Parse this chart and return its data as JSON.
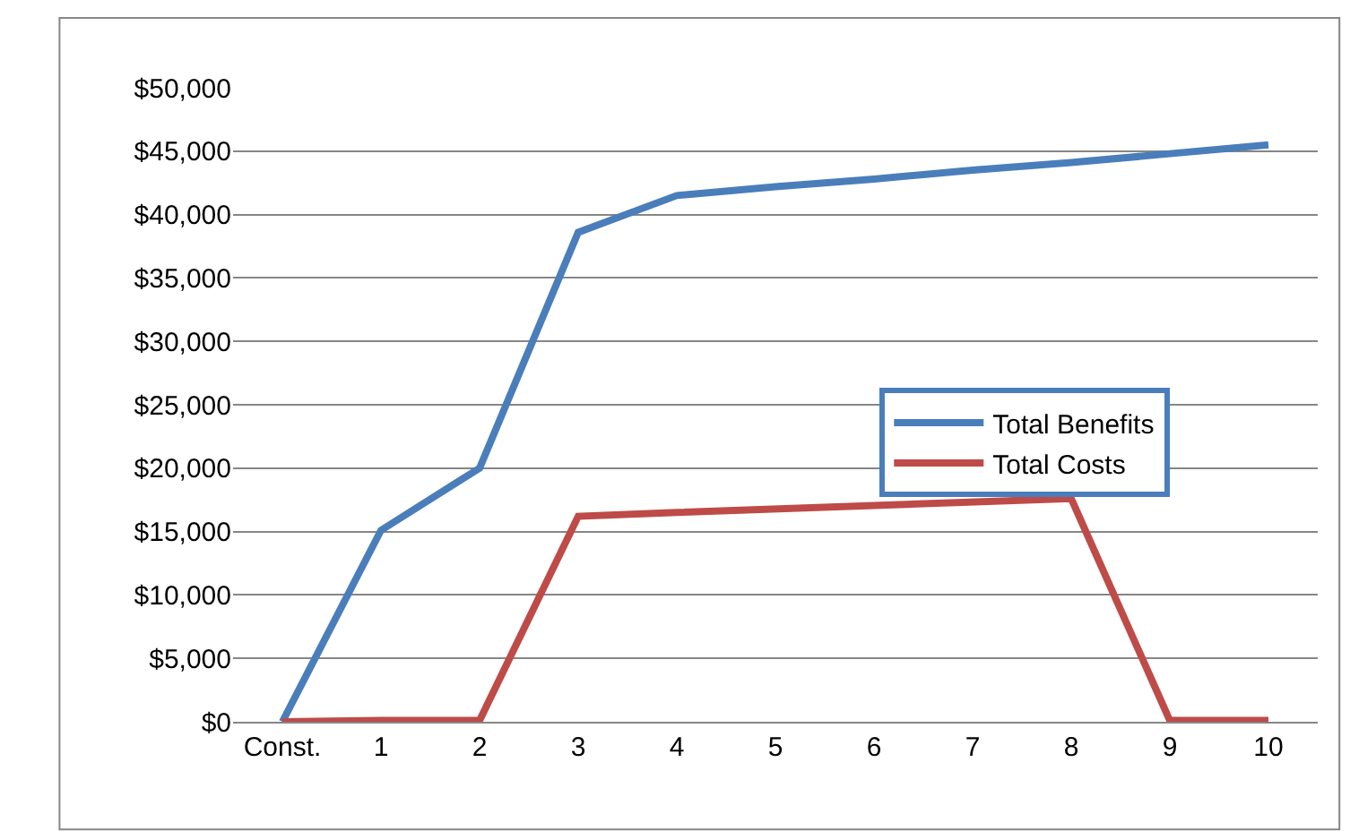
{
  "chart_data": {
    "type": "line",
    "categories": [
      "Const.",
      "1",
      "2",
      "3",
      "4",
      "5",
      "6",
      "7",
      "8",
      "9",
      "10"
    ],
    "series": [
      {
        "name": "Total Benefits",
        "color": "#4a7ebb",
        "values": [
          0,
          15100,
          20000,
          38600,
          41500,
          42200,
          42800,
          43500,
          44100,
          44800,
          45500
        ]
      },
      {
        "name": "Total Costs",
        "color": "#be4b48",
        "values": [
          0,
          100,
          100,
          16200,
          16500,
          null,
          null,
          null,
          17600,
          100,
          100
        ]
      }
    ],
    "ylim": [
      0,
      50000
    ],
    "yticks": [
      {
        "value": 0,
        "label": "$0"
      },
      {
        "value": 5000,
        "label": "$5,000"
      },
      {
        "value": 10000,
        "label": "$10,000"
      },
      {
        "value": 15000,
        "label": "$15,000"
      },
      {
        "value": 20000,
        "label": "$20,000"
      },
      {
        "value": 25000,
        "label": "$25,000"
      },
      {
        "value": 30000,
        "label": "$30,000"
      },
      {
        "value": 35000,
        "label": "$35,000"
      },
      {
        "value": 40000,
        "label": "$40,000"
      },
      {
        "value": 45000,
        "label": "$45,000"
      },
      {
        "value": 50000,
        "label": "$50,000"
      }
    ],
    "grid": "y",
    "legend": "center right",
    "marker": "none",
    "line_style": "solid"
  }
}
